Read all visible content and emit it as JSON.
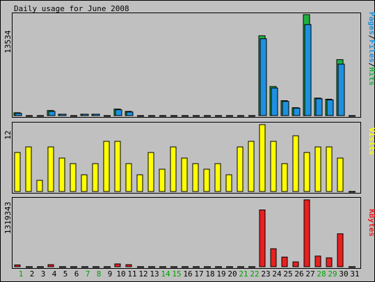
{
  "chart_data": [
    {
      "type": "bar",
      "title": "Daily usage for June 2008",
      "panel": "hits-files-pages",
      "ymax_label": "13534",
      "ymax": 13534,
      "side_label": [
        "Pages",
        "/",
        "Files",
        "/",
        "Hits"
      ],
      "categories": [
        "1",
        "2",
        "3",
        "4",
        "5",
        "6",
        "7",
        "8",
        "9",
        "10",
        "11",
        "12",
        "13",
        "14",
        "15",
        "16",
        "17",
        "18",
        "19",
        "20",
        "21",
        "22",
        "23",
        "24",
        "25",
        "26",
        "27",
        "28",
        "29",
        "30",
        "31"
      ],
      "series": [
        {
          "name": "Hits",
          "color": "#20b040",
          "values": [
            380,
            0,
            0,
            680,
            140,
            0,
            160,
            160,
            0,
            880,
            560,
            0,
            0,
            0,
            0,
            0,
            0,
            0,
            0,
            0,
            0,
            0,
            10700,
            3900,
            2000,
            1060,
            13534,
            2350,
            2200,
            7500,
            0
          ]
        },
        {
          "name": "Files",
          "color": "#1e90e0",
          "values": [
            300,
            0,
            0,
            560,
            110,
            0,
            130,
            130,
            0,
            780,
            480,
            0,
            0,
            0,
            0,
            0,
            0,
            0,
            0,
            0,
            0,
            0,
            10300,
            3700,
            1900,
            1000,
            12200,
            2260,
            2100,
            6900,
            0
          ]
        },
        {
          "name": "Pages",
          "color": "#1e90e0",
          "values": [
            300,
            0,
            0,
            560,
            110,
            0,
            130,
            130,
            0,
            780,
            480,
            0,
            0,
            0,
            0,
            0,
            0,
            0,
            0,
            0,
            0,
            0,
            10300,
            3700,
            1900,
            1000,
            12200,
            2260,
            2100,
            6900,
            0
          ]
        }
      ]
    },
    {
      "type": "bar",
      "panel": "visits",
      "ymax_label": "12",
      "ymax": 12,
      "side_label": [
        "Visits"
      ],
      "categories": [
        "1",
        "2",
        "3",
        "4",
        "5",
        "6",
        "7",
        "8",
        "9",
        "10",
        "11",
        "12",
        "13",
        "14",
        "15",
        "16",
        "17",
        "18",
        "19",
        "20",
        "21",
        "22",
        "23",
        "24",
        "25",
        "26",
        "27",
        "28",
        "29",
        "30",
        "31"
      ],
      "series": [
        {
          "name": "Visits",
          "color": "#ffff00",
          "values": [
            7,
            8,
            2,
            8,
            6,
            5,
            3,
            5,
            9,
            9,
            5,
            3,
            7,
            4,
            8,
            6,
            5,
            4,
            5,
            3,
            8,
            9,
            12,
            9,
            5,
            10,
            7,
            8,
            8,
            6,
            0
          ]
        }
      ]
    },
    {
      "type": "bar",
      "panel": "kbytes",
      "ymax_label": "1319343",
      "ymax": 1319343,
      "side_label": [
        "KBytes"
      ],
      "categories": [
        "1",
        "2",
        "3",
        "4",
        "5",
        "6",
        "7",
        "8",
        "9",
        "10",
        "11",
        "12",
        "13",
        "14",
        "15",
        "16",
        "17",
        "18",
        "19",
        "20",
        "21",
        "22",
        "23",
        "24",
        "25",
        "26",
        "27",
        "28",
        "29",
        "30",
        "31"
      ],
      "series": [
        {
          "name": "KBytes",
          "color": "#e82020",
          "values": [
            35000,
            0,
            0,
            40000,
            0,
            0,
            0,
            0,
            0,
            55000,
            40000,
            0,
            0,
            0,
            0,
            0,
            0,
            0,
            0,
            0,
            0,
            0,
            1120000,
            355000,
            190000,
            95000,
            1319343,
            210000,
            175000,
            650000,
            0
          ]
        }
      ]
    }
  ],
  "weekend_days": [
    "1",
    "7",
    "8",
    "14",
    "15",
    "21",
    "22",
    "28",
    "29"
  ],
  "colors": {
    "background": "#c0c0c0",
    "weekday_label": "#000000",
    "weekend_label": "#00a000",
    "hits": "#20b040",
    "files": "#1e90e0",
    "pages": "#1e90e0",
    "visits": "#ffff00",
    "kbytes": "#e82020"
  }
}
